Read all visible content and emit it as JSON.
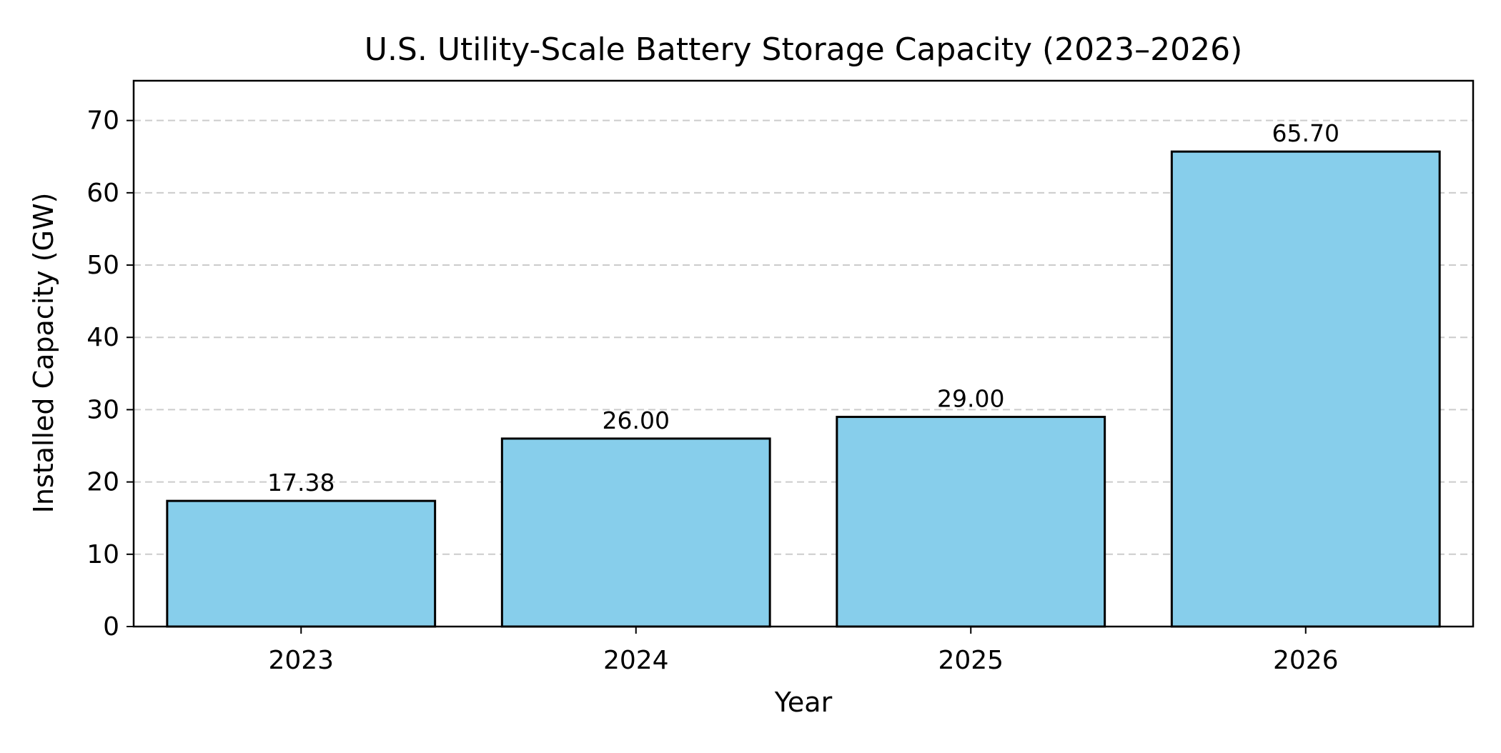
{
  "chart_data": {
    "type": "bar",
    "title": "U.S. Utility-Scale Battery Storage Capacity (2023–2026)",
    "xlabel": "Year",
    "ylabel": "Installed Capacity (GW)",
    "categories": [
      "2023",
      "2024",
      "2025",
      "2026"
    ],
    "values": [
      17.38,
      26.0,
      29.0,
      65.7
    ],
    "data_labels": [
      "17.38",
      "26.00",
      "29.00",
      "65.70"
    ],
    "ylim": [
      0,
      75.5
    ],
    "yticks": [
      0,
      10,
      20,
      30,
      40,
      50,
      60,
      70
    ],
    "grid": "y-dashed",
    "colors": {
      "bar_fill": "#87CEEB",
      "bar_edge": "#000000",
      "grid": "#cccccc",
      "axes": "#000000"
    }
  }
}
